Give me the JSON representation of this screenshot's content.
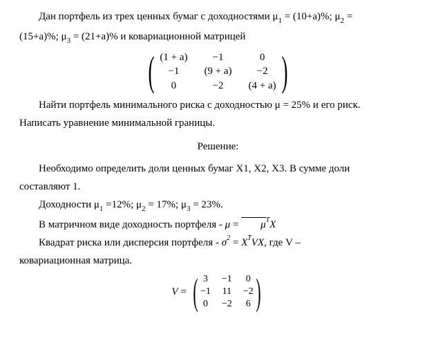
{
  "paragraphs": {
    "p1_part1": "Дан портфель из трех ценных бумаг с доходностями μ",
    "p1_sub1": "1",
    "p1_part2": " = (10+a)%; μ",
    "p1_sub2": "2",
    "p1_part3": " = ",
    "p1_cont_part1": "(15+a)%; μ",
    "p1_cont_sub3": "3",
    "p1_cont_part2": " = (21+a)% и ковариационной матрицей",
    "p2": "Найти портфель минимального риска с доходностью μ = 25% и его риск. ",
    "p2_cont": "Написать уравнение минимальной границы.",
    "solution_header": "Решение:",
    "p3_part1": "Необходимо определить доли ценных бумаг Х1, Х2, Х3. В сумме доли ",
    "p3_cont": "составляют 1.",
    "p4_part1": "Доходности μ",
    "p4_sub1": "1",
    "p4_part2": " =12%; μ",
    "p4_sub2": "2",
    "p4_part3": " = 17%;  μ",
    "p4_sub3": "3",
    "p4_part4": " = 23%.",
    "p5_part1": "В матричном виде доходность портфеля - ",
    "p5_formula_mu": "μ",
    "p5_formula_eq": " = ",
    "p5_formula_mubar": "μ",
    "p5_formula_T": "T",
    "p5_formula_X": "X",
    "p6_part1": "Квадрат риска или дисперсия портфеля - ",
    "p6_formula_sigma": "σ",
    "p6_formula_sq": "2",
    "p6_formula_eq": " = ",
    "p6_formula_X1": "X",
    "p6_formula_T": "T",
    "p6_formula_V": "V",
    "p6_formula_X2": "X",
    "p6_part2": ", где V – ",
    "p6_cont": "ковариационная матрица."
  },
  "matrix1": {
    "rows": [
      [
        "(1 + a)",
        "−1",
        "0"
      ],
      [
        "−1",
        "(9 + a)",
        "−2"
      ],
      [
        "0",
        "−2",
        "(4 + a)"
      ]
    ]
  },
  "matrix2": {
    "prefix_V": "V",
    "prefix_eq": " = ",
    "rows": [
      [
        "3",
        "−1",
        "0"
      ],
      [
        "−1",
        "11",
        "−2"
      ],
      [
        "0",
        "−2",
        "6"
      ]
    ]
  },
  "style": {
    "text_color": "#000000",
    "background_color": "#ffffff",
    "font_family": "Times New Roman",
    "base_font_size_pt": 12
  }
}
